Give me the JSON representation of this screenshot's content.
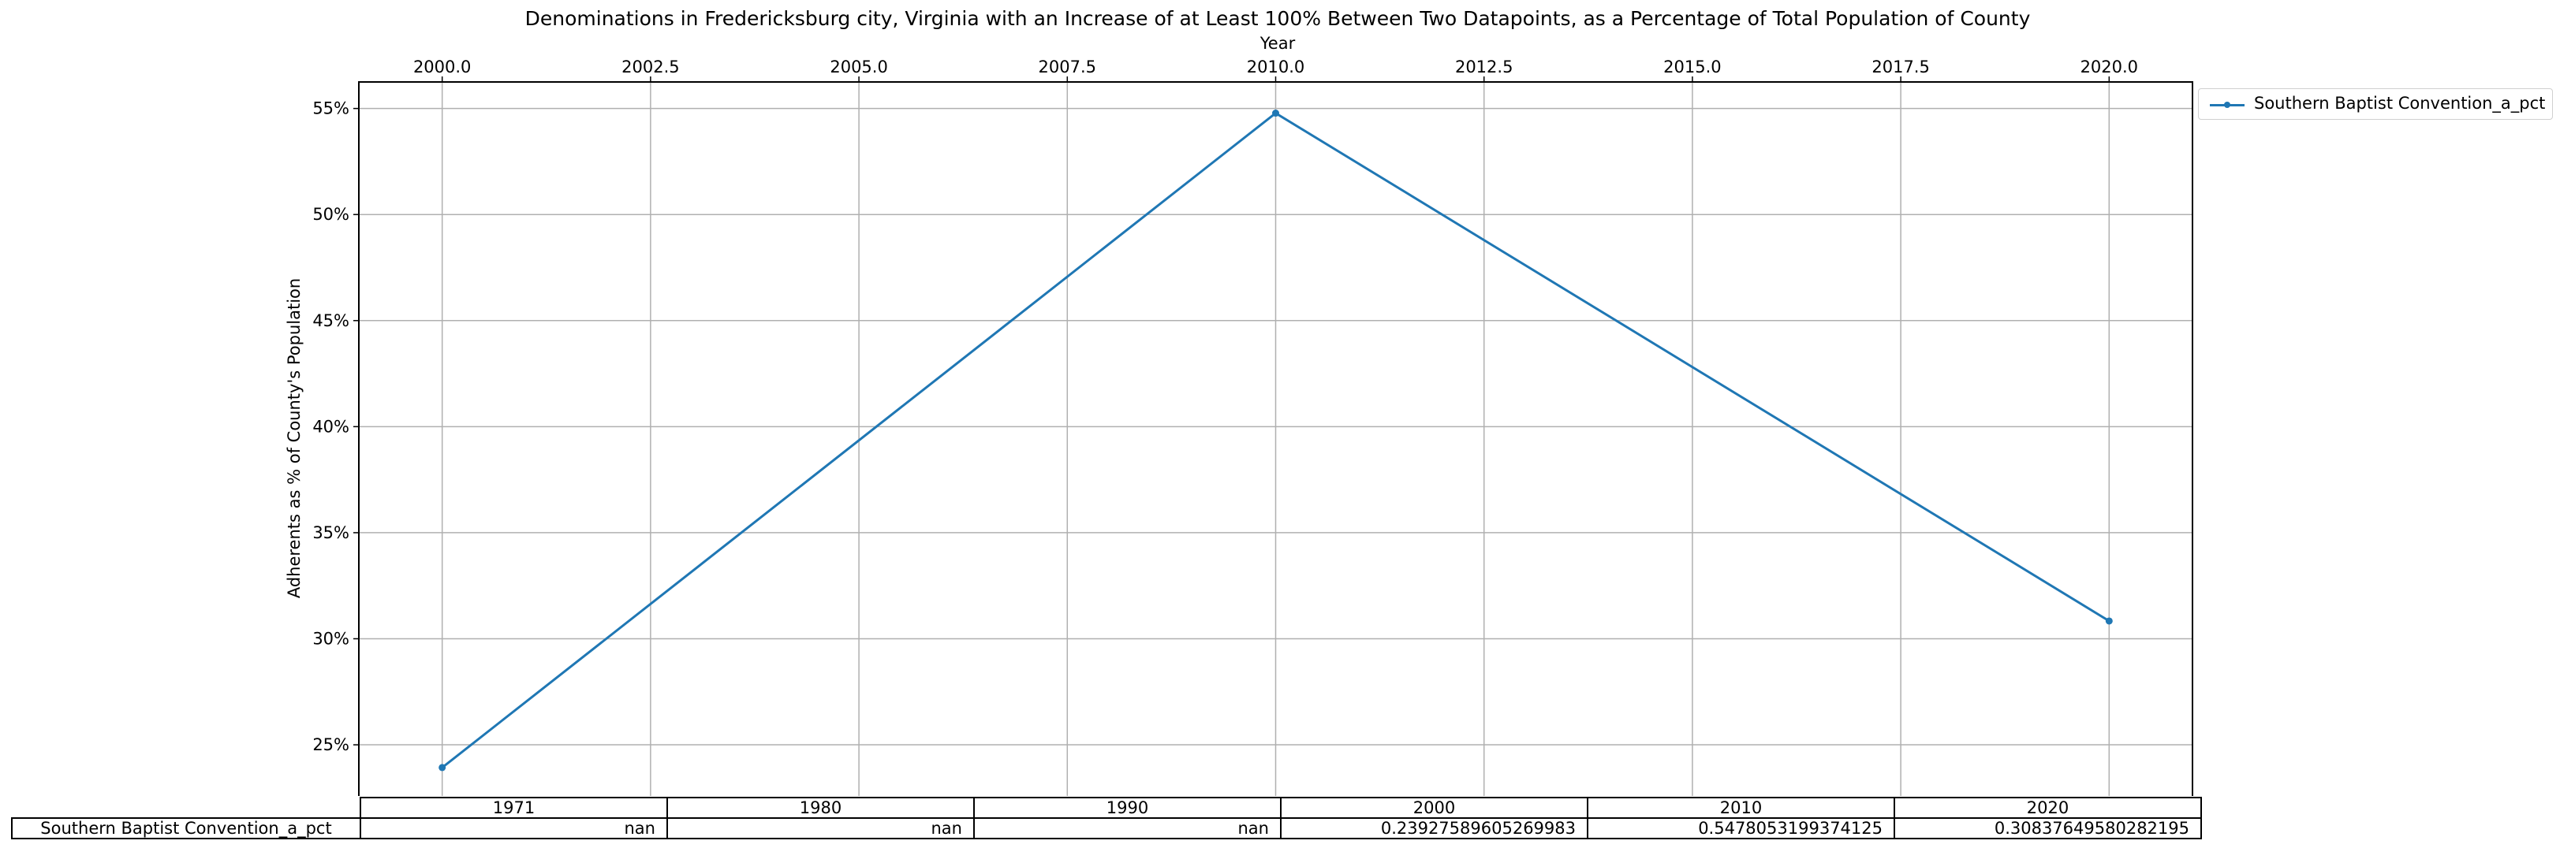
{
  "chart_data": {
    "type": "line",
    "title": "Denominations in Fredericksburg city, Virginia with an Increase of at Least 100% Between Two Datapoints, as a Percentage of Total Population of County",
    "xlabel": "Year",
    "ylabel": "Adherents as % of County's Population",
    "x_axis_position": "top",
    "xlim": [
      1999.0,
      2021.0
    ],
    "ylim": [
      0.2255,
      0.5625
    ],
    "x_ticks": [
      2000.0,
      2002.5,
      2005.0,
      2007.5,
      2010.0,
      2012.5,
      2015.0,
      2017.5,
      2020.0
    ],
    "x_tick_labels": [
      "2000.0",
      "2002.5",
      "2005.0",
      "2007.5",
      "2010.0",
      "2012.5",
      "2015.0",
      "2017.5",
      "2020.0"
    ],
    "y_ticks": [
      0.25,
      0.3,
      0.35,
      0.4,
      0.45,
      0.5,
      0.55
    ],
    "y_tick_labels": [
      "25%",
      "30%",
      "35%",
      "40%",
      "45%",
      "50%",
      "55%"
    ],
    "grid": true,
    "legend_position": "outside-top-right",
    "series": [
      {
        "name": "Southern Baptist Convention_a_pct",
        "color": "#1f77b4",
        "x": [
          2000,
          2010,
          2020
        ],
        "y": [
          0.23927589605269983,
          0.5478053199374125,
          0.30837649580282195
        ]
      }
    ],
    "table": {
      "columns": [
        "1971",
        "1980",
        "1990",
        "2000",
        "2010",
        "2020"
      ],
      "row_label": "Southern Baptist Convention_a_pct",
      "cells": [
        "nan",
        "nan",
        "nan",
        "0.23927589605269983",
        "0.5478053199374125",
        "0.30837649580282195"
      ]
    }
  }
}
